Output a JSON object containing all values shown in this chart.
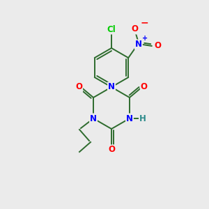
{
  "background_color": "#ebebeb",
  "bond_color": "#2d6b2d",
  "atom_colors": {
    "N": "#0000ff",
    "O": "#ff0000",
    "Cl": "#00cc00",
    "H": "#2d8b8b",
    "NO2_N": "#0000ff",
    "NO2_O": "#ff0000",
    "charge_minus": "#ff0000",
    "charge_plus": "#0000ff"
  },
  "figsize": [
    3.0,
    3.0
  ],
  "dpi": 100
}
